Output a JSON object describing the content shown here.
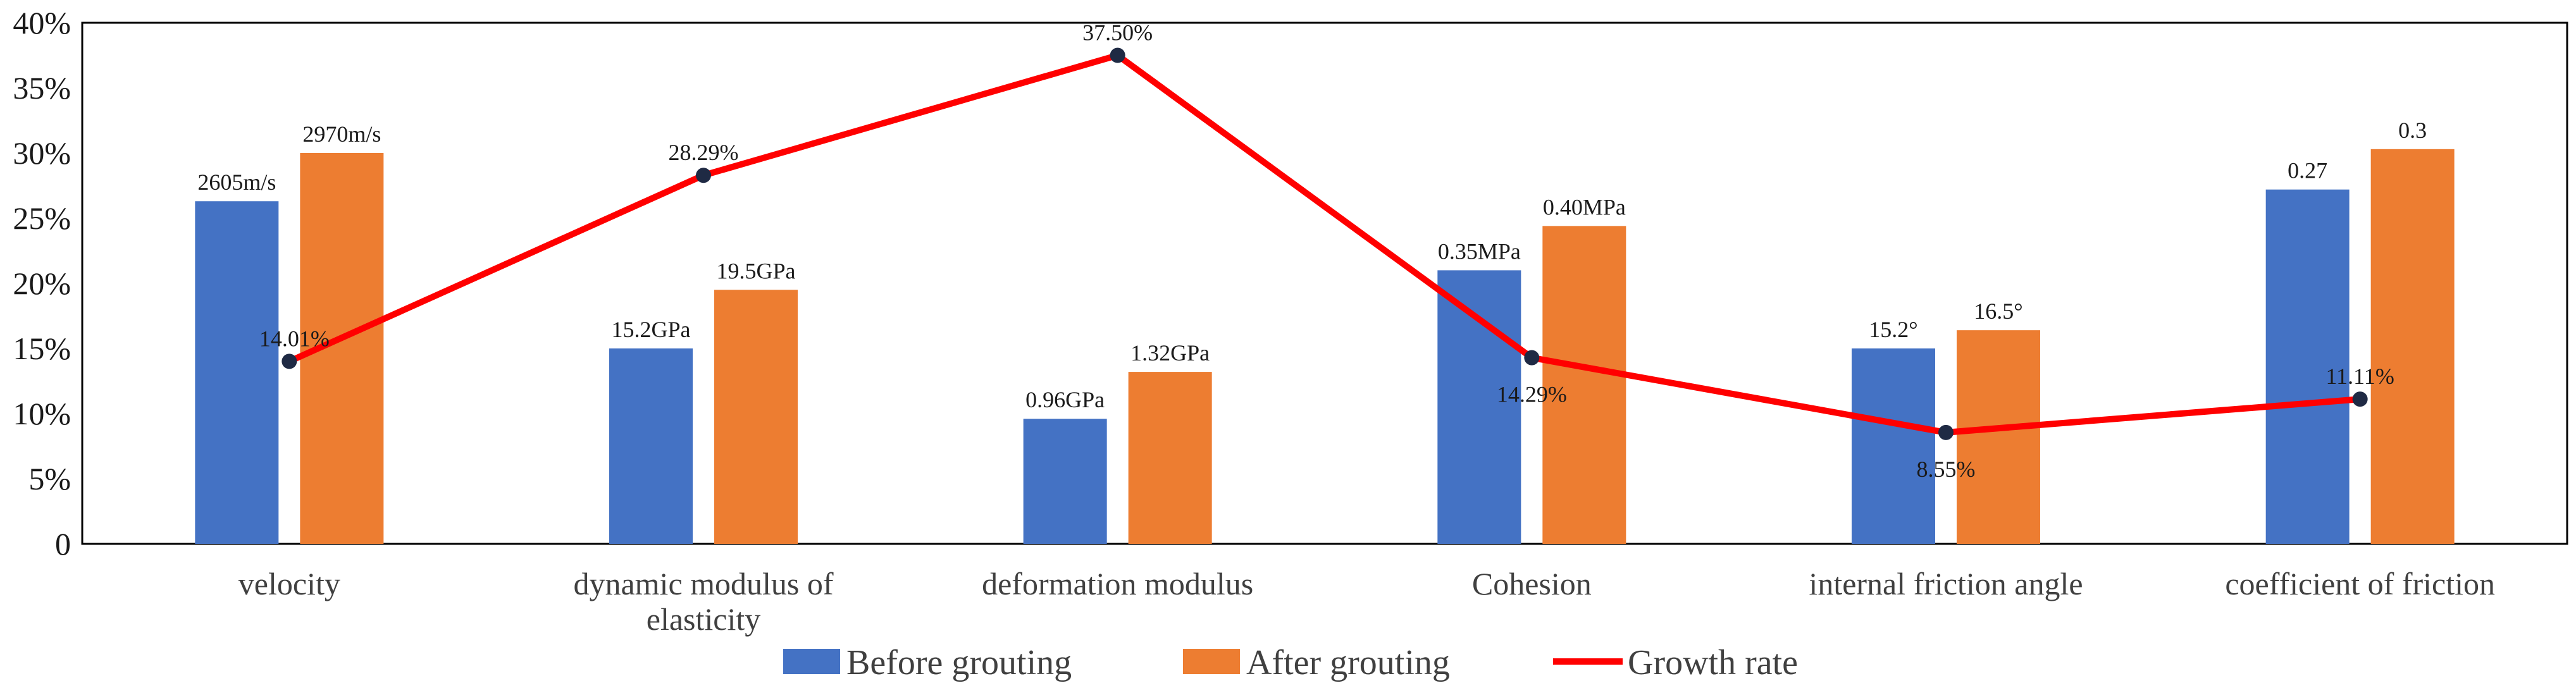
{
  "chart_data": {
    "type": "bar",
    "categories": [
      [
        "velocity"
      ],
      [
        "dynamic modulus of",
        "elasticity"
      ],
      [
        "deformation modulus"
      ],
      [
        "Cohesion"
      ],
      [
        "internal friction angle"
      ],
      [
        "coefficient of friction"
      ]
    ],
    "ylim": [
      0,
      40
    ],
    "yticks": [
      {
        "value": 0,
        "label": "0"
      },
      {
        "value": 5,
        "label": "5%"
      },
      {
        "value": 10,
        "label": "10%"
      },
      {
        "value": 15,
        "label": "15%"
      },
      {
        "value": 20,
        "label": "20%"
      },
      {
        "value": 25,
        "label": "25%"
      },
      {
        "value": 30,
        "label": "30%"
      },
      {
        "value": 35,
        "label": "35%"
      },
      {
        "value": 40,
        "label": "40%"
      }
    ],
    "grid": false,
    "legend_position": "bottom",
    "series": [
      {
        "name": "Before grouting",
        "kind": "bar",
        "color": "#4472C4",
        "values": [
          26.3,
          15.0,
          9.6,
          21.0,
          15.0,
          27.2
        ],
        "labels": [
          "2605m/s",
          "15.2GPa",
          "0.96GPa",
          "0.35MPa",
          "15.2°",
          "0.27"
        ]
      },
      {
        "name": "After grouting",
        "kind": "bar",
        "color": "#ED7D31",
        "values": [
          30.0,
          19.5,
          13.2,
          24.4,
          16.4,
          30.3
        ],
        "labels": [
          "2970m/s",
          "19.5GPa",
          "1.32GPa",
          "0.40MPa",
          "16.5°",
          "0.3"
        ]
      },
      {
        "name": "Growth rate",
        "kind": "line",
        "color": "#FF0000",
        "marker_color": "#1F2A44",
        "values": [
          14.01,
          28.29,
          37.5,
          14.29,
          8.55,
          11.11
        ],
        "labels": [
          "14.01%",
          "28.29%",
          "37.50%",
          "14.29%",
          "8.55%",
          "11.11%"
        ]
      }
    ]
  }
}
